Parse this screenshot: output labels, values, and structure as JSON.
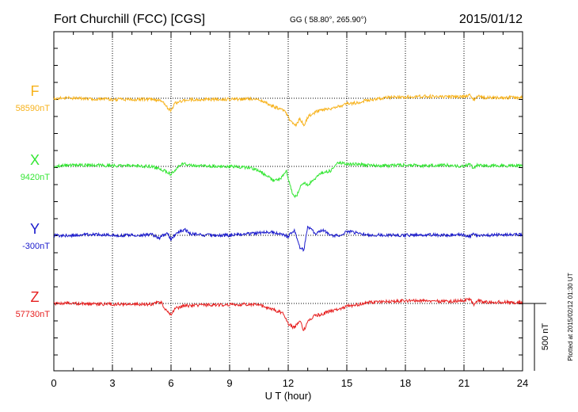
{
  "chart_data": {
    "type": "line",
    "title": "Fort Churchill (FCC)  [CGS]",
    "coords": "GG ( 58.80°, 265.90°)",
    "date": "2015/01/12",
    "xlabel": "U T (hour)",
    "xlim": [
      0,
      24
    ],
    "xticks": [
      0,
      3,
      6,
      9,
      12,
      15,
      18,
      21,
      24
    ],
    "scale_bar_label": "500 nT",
    "scale_bar_nT": 500,
    "footer": "Plotted at 2015/02/12 01:30 UT",
    "series": [
      {
        "name": "F",
        "baseline_label": "58590nT",
        "color": "#f7b21b",
        "points": [
          [
            0,
            0
          ],
          [
            1,
            0
          ],
          [
            2,
            -5
          ],
          [
            3,
            -8
          ],
          [
            4,
            -10
          ],
          [
            5,
            -8
          ],
          [
            5.5,
            -15
          ],
          [
            5.75,
            -60
          ],
          [
            6,
            -95
          ],
          [
            6.2,
            -40
          ],
          [
            6.6,
            -20
          ],
          [
            7,
            -10
          ],
          [
            8,
            -8
          ],
          [
            9,
            -8
          ],
          [
            10,
            -5
          ],
          [
            10.6,
            -15
          ],
          [
            11,
            -45
          ],
          [
            11.4,
            -70
          ],
          [
            11.8,
            -90
          ],
          [
            12.1,
            -165
          ],
          [
            12.4,
            -200
          ],
          [
            12.6,
            -150
          ],
          [
            12.8,
            -205
          ],
          [
            13,
            -140
          ],
          [
            13.3,
            -110
          ],
          [
            13.7,
            -85
          ],
          [
            14.2,
            -75
          ],
          [
            14.7,
            -55
          ],
          [
            15,
            -40
          ],
          [
            15.5,
            -35
          ],
          [
            16,
            -15
          ],
          [
            17,
            5
          ],
          [
            18,
            10
          ],
          [
            19,
            15
          ],
          [
            20,
            10
          ],
          [
            21,
            12
          ],
          [
            21.3,
            25
          ],
          [
            21.5,
            -10
          ],
          [
            21.7,
            20
          ],
          [
            22,
            5
          ],
          [
            23,
            5
          ],
          [
            24,
            5
          ]
        ]
      },
      {
        "name": "X",
        "baseline_label": "9420nT",
        "color": "#33e633",
        "points": [
          [
            0,
            5
          ],
          [
            1,
            8
          ],
          [
            2,
            10
          ],
          [
            3,
            5
          ],
          [
            4,
            5
          ],
          [
            5,
            0
          ],
          [
            5.5,
            -25
          ],
          [
            5.8,
            -40
          ],
          [
            6,
            -60
          ],
          [
            6.2,
            -25
          ],
          [
            6.6,
            20
          ],
          [
            7,
            10
          ],
          [
            8,
            0
          ],
          [
            9,
            0
          ],
          [
            10,
            -10
          ],
          [
            10.5,
            -30
          ],
          [
            11,
            -80
          ],
          [
            11.3,
            -110
          ],
          [
            11.6,
            -95
          ],
          [
            11.9,
            -30
          ],
          [
            12.2,
            -190
          ],
          [
            12.4,
            -230
          ],
          [
            12.6,
            -160
          ],
          [
            12.8,
            -120
          ],
          [
            13,
            -140
          ],
          [
            13.3,
            -100
          ],
          [
            13.7,
            -50
          ],
          [
            14.2,
            -30
          ],
          [
            14.6,
            30
          ],
          [
            15,
            20
          ],
          [
            16,
            10
          ],
          [
            17,
            5
          ],
          [
            18,
            10
          ],
          [
            19,
            5
          ],
          [
            20,
            10
          ],
          [
            21,
            0
          ],
          [
            21.3,
            15
          ],
          [
            21.5,
            -15
          ],
          [
            21.7,
            10
          ],
          [
            22,
            5
          ],
          [
            23,
            5
          ],
          [
            24,
            5
          ]
        ]
      },
      {
        "name": "Y",
        "baseline_label": "-300nT",
        "color": "#1a1acc",
        "points": [
          [
            0,
            0
          ],
          [
            1,
            0
          ],
          [
            2,
            5
          ],
          [
            3,
            0
          ],
          [
            4,
            0
          ],
          [
            5,
            5
          ],
          [
            5.4,
            -20
          ],
          [
            5.8,
            20
          ],
          [
            6,
            -30
          ],
          [
            6.2,
            5
          ],
          [
            6.7,
            45
          ],
          [
            7,
            10
          ],
          [
            8,
            0
          ],
          [
            9,
            0
          ],
          [
            10,
            10
          ],
          [
            11,
            25
          ],
          [
            11.6,
            15
          ],
          [
            12,
            -10
          ],
          [
            12.3,
            40
          ],
          [
            12.6,
            -90
          ],
          [
            12.8,
            -110
          ],
          [
            13,
            70
          ],
          [
            13.4,
            10
          ],
          [
            13.8,
            40
          ],
          [
            14.3,
            -10
          ],
          [
            14.8,
            10
          ],
          [
            15,
            30
          ],
          [
            16,
            5
          ],
          [
            17,
            0
          ],
          [
            18,
            0
          ],
          [
            19,
            5
          ],
          [
            20,
            0
          ],
          [
            21,
            5
          ],
          [
            21.3,
            -10
          ],
          [
            21.5,
            15
          ],
          [
            21.7,
            -5
          ],
          [
            22,
            0
          ],
          [
            23,
            5
          ],
          [
            24,
            5
          ]
        ]
      },
      {
        "name": "Z",
        "baseline_label": "57730nT",
        "color": "#e62020",
        "points": [
          [
            0,
            0
          ],
          [
            1,
            0
          ],
          [
            2,
            -5
          ],
          [
            3,
            -5
          ],
          [
            4,
            -5
          ],
          [
            5,
            -5
          ],
          [
            5.5,
            10
          ],
          [
            5.75,
            -50
          ],
          [
            6,
            -80
          ],
          [
            6.2,
            -40
          ],
          [
            6.6,
            -20
          ],
          [
            7,
            -15
          ],
          [
            8,
            -10
          ],
          [
            9,
            -10
          ],
          [
            10,
            -5
          ],
          [
            10.6,
            -15
          ],
          [
            11,
            -35
          ],
          [
            11.4,
            -55
          ],
          [
            11.7,
            -70
          ],
          [
            12,
            -150
          ],
          [
            12.3,
            -180
          ],
          [
            12.6,
            -130
          ],
          [
            12.8,
            -200
          ],
          [
            13,
            -140
          ],
          [
            13.3,
            -95
          ],
          [
            13.7,
            -80
          ],
          [
            14.2,
            -55
          ],
          [
            14.7,
            -40
          ],
          [
            15,
            -20
          ],
          [
            15.5,
            -10
          ],
          [
            16,
            5
          ],
          [
            17,
            15
          ],
          [
            18,
            20
          ],
          [
            19,
            20
          ],
          [
            20,
            15
          ],
          [
            21,
            20
          ],
          [
            21.3,
            35
          ],
          [
            21.5,
            -10
          ],
          [
            21.7,
            25
          ],
          [
            22,
            10
          ],
          [
            23,
            10
          ],
          [
            24,
            5
          ]
        ]
      }
    ]
  }
}
